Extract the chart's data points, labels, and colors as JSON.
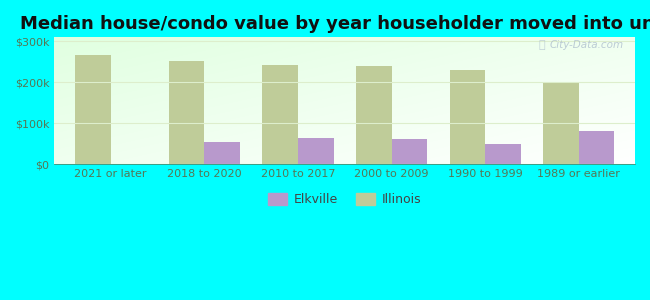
{
  "title": "Median house/condo value by year householder moved into unit",
  "categories": [
    "2021 or later",
    "2018 to 2020",
    "2010 to 2017",
    "2000 to 2009",
    "1990 to 1999",
    "1989 or earlier"
  ],
  "elkville_values": [
    null,
    55000,
    63000,
    62000,
    50000,
    82000
  ],
  "illinois_values": [
    268000,
    252000,
    242000,
    240000,
    230000,
    200000
  ],
  "elkville_color": "#b899cc",
  "illinois_color": "#bfcc99",
  "background_color": "#00ffff",
  "ylabel_ticks": [
    "$0",
    "$100k",
    "$200k",
    "$300k"
  ],
  "ytick_values": [
    0,
    100000,
    200000,
    300000
  ],
  "ylim": [
    0,
    310000
  ],
  "bar_width": 0.38,
  "watermark": "City-Data.com",
  "title_fontsize": 13,
  "tick_fontsize": 8,
  "legend_fontsize": 9,
  "tick_color": "#557755",
  "grid_color": "#ddeecc"
}
